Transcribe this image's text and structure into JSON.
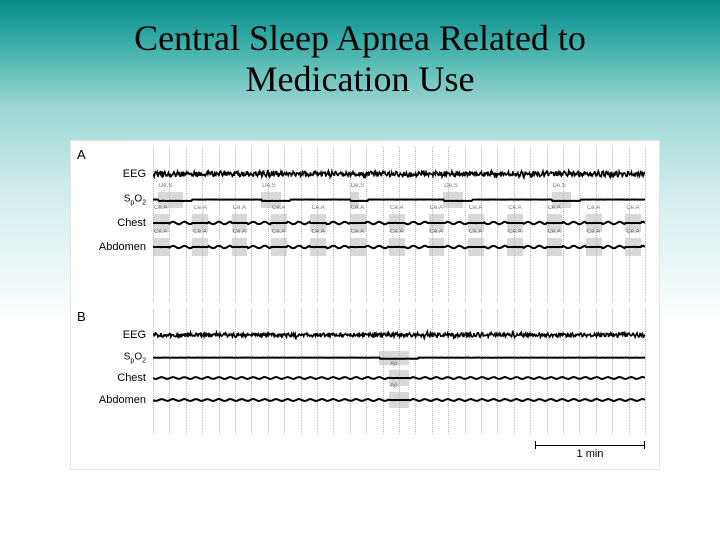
{
  "title_line1": "Central Sleep Apnea Related to",
  "title_line2": "Medication Use",
  "figure": {
    "background_color": "#ffffff",
    "grid_color": "#b8b8b8",
    "grid_count": 30,
    "trace_color": "#000000",
    "event_fill": "#b9b9b9",
    "panels": [
      {
        "id": "A",
        "label": "A",
        "channels": [
          "EEG",
          "SpO2",
          "Chest",
          "Abdomen"
        ],
        "eeg_amplitude": 7.5,
        "resp_amplitude": 5.0,
        "events_spo2": [
          {
            "start_pct": 1,
            "width_pct": 5,
            "label": "De.S"
          },
          {
            "start_pct": 22,
            "width_pct": 4,
            "label": "De.S"
          },
          {
            "start_pct": 40,
            "width_pct": 1.8,
            "label": "De.S"
          },
          {
            "start_pct": 59,
            "width_pct": 4,
            "label": "De.S"
          },
          {
            "start_pct": 81,
            "width_pct": 4,
            "label": "De.S"
          }
        ],
        "events_chest": [
          {
            "start_pct": 0,
            "width_pct": 3.2,
            "label": "Ce.A"
          },
          {
            "start_pct": 8,
            "width_pct": 3.2,
            "label": "Ce.A"
          },
          {
            "start_pct": 16,
            "width_pct": 3.2,
            "label": "Ce.A"
          },
          {
            "start_pct": 24,
            "width_pct": 3.2,
            "label": "Ce.A"
          },
          {
            "start_pct": 32,
            "width_pct": 3.2,
            "label": "Ce.A"
          },
          {
            "start_pct": 40,
            "width_pct": 3.2,
            "label": "Ce.A"
          },
          {
            "start_pct": 48,
            "width_pct": 3.2,
            "label": "Ce.A"
          },
          {
            "start_pct": 56,
            "width_pct": 3.2,
            "label": "Ce.A"
          },
          {
            "start_pct": 64,
            "width_pct": 3.2,
            "label": "Ce.A"
          },
          {
            "start_pct": 72,
            "width_pct": 3.2,
            "label": "Ce.A"
          },
          {
            "start_pct": 80,
            "width_pct": 3.2,
            "label": "Ce.A"
          },
          {
            "start_pct": 88,
            "width_pct": 3.2,
            "label": "Ce.A"
          },
          {
            "start_pct": 96,
            "width_pct": 3.2,
            "label": "Ce.A"
          }
        ],
        "events_abdomen": [
          {
            "start_pct": 0,
            "width_pct": 3.2,
            "label": "Ce.A"
          },
          {
            "start_pct": 8,
            "width_pct": 3.2,
            "label": "Ce.A"
          },
          {
            "start_pct": 16,
            "width_pct": 3.2,
            "label": "Ce.A"
          },
          {
            "start_pct": 24,
            "width_pct": 3.2,
            "label": "Ce.A"
          },
          {
            "start_pct": 32,
            "width_pct": 3.2,
            "label": "Ce.A"
          },
          {
            "start_pct": 40,
            "width_pct": 3.2,
            "label": "Ce.A"
          },
          {
            "start_pct": 48,
            "width_pct": 3.2,
            "label": "Ce.A"
          },
          {
            "start_pct": 56,
            "width_pct": 3.2,
            "label": "Ce.A"
          },
          {
            "start_pct": 64,
            "width_pct": 3.2,
            "label": "Ce.A"
          },
          {
            "start_pct": 72,
            "width_pct": 3.2,
            "label": "Ce.A"
          },
          {
            "start_pct": 80,
            "width_pct": 3.2,
            "label": "Ce.A"
          },
          {
            "start_pct": 88,
            "width_pct": 3.2,
            "label": "Ce.A"
          },
          {
            "start_pct": 96,
            "width_pct": 3.2,
            "label": "Ce.A"
          }
        ]
      },
      {
        "id": "B",
        "label": "B",
        "channels": [
          "EEG",
          "SpO2",
          "Chest",
          "Abdomen"
        ],
        "eeg_amplitude": 6.5,
        "resp_amplitude": 4.0,
        "events_spo2": [
          {
            "start_pct": 46,
            "width_pct": 6,
            "label": ""
          }
        ],
        "events_chest": [
          {
            "start_pct": 48,
            "width_pct": 4,
            "label": "Ap."
          }
        ],
        "events_abdomen": [
          {
            "start_pct": 48,
            "width_pct": 4,
            "label": "Ap."
          }
        ]
      }
    ],
    "scale_label": "1 min",
    "label_font": "Arial",
    "label_fontsize": 11,
    "panel_label_fontsize": 13
  }
}
